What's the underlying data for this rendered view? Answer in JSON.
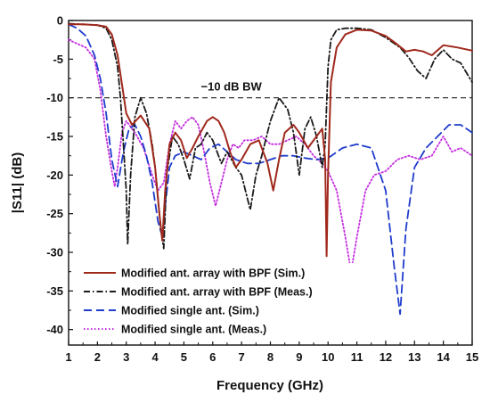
{
  "chart_data": {
    "type": "line",
    "xlabel": "Frequency (GHz)",
    "ylabel": "|S11| (dB)",
    "xlim": [
      1,
      15
    ],
    "ylim": [
      -42,
      0
    ],
    "xticks": [
      1,
      2,
      3,
      4,
      5,
      6,
      7,
      8,
      9,
      10,
      11,
      12,
      13,
      14,
      15
    ],
    "yticks": [
      0,
      -5,
      -10,
      -15,
      -20,
      -25,
      -30,
      -35,
      -40
    ],
    "grid": false,
    "legend_position": "bottom-left",
    "annotation": {
      "text": "−10 dB BW",
      "y": -10,
      "x": 8.0
    },
    "series": [
      {
        "name": "Modified ant. array with BPF (Sim.)",
        "color": "#a0291c",
        "dash": "solid",
        "x": [
          1.0,
          1.5,
          2.0,
          2.3,
          2.5,
          2.7,
          2.9,
          3.0,
          3.2,
          3.5,
          3.8,
          4.0,
          4.15,
          4.25,
          4.35,
          4.5,
          4.7,
          4.9,
          5.1,
          5.3,
          5.5,
          5.8,
          6.0,
          6.2,
          6.4,
          6.6,
          6.8,
          7.0,
          7.3,
          7.6,
          7.9,
          8.1,
          8.3,
          8.5,
          8.8,
          9.0,
          9.3,
          9.6,
          9.8,
          9.9,
          9.95,
          10.0,
          10.1,
          10.3,
          10.6,
          11.0,
          11.5,
          12.0,
          12.3,
          12.7,
          13.0,
          13.3,
          13.6,
          14.0,
          14.5,
          15.0
        ],
        "values": [
          -0.5,
          -0.5,
          -0.6,
          -0.8,
          -1.8,
          -4.5,
          -9.5,
          -12.0,
          -13.5,
          -12.3,
          -14.0,
          -19.0,
          -25.0,
          -28.5,
          -22.0,
          -16.0,
          -14.5,
          -15.5,
          -17.8,
          -16.5,
          -15.0,
          -13.0,
          -12.5,
          -13.0,
          -14.5,
          -17.0,
          -19.0,
          -18.0,
          -16.0,
          -15.5,
          -18.5,
          -22.0,
          -18.0,
          -14.5,
          -13.5,
          -14.5,
          -16.5,
          -15.0,
          -14.0,
          -18.0,
          -30.5,
          -20.0,
          -8.0,
          -3.5,
          -1.8,
          -1.2,
          -1.3,
          -2.0,
          -2.8,
          -4.0,
          -3.8,
          -4.0,
          -4.5,
          -3.2,
          -3.5,
          -3.9
        ]
      },
      {
        "name": "Modified ant. array with BPF (Meas.)",
        "color": "#1a1a1a",
        "dash": "dash-dot",
        "x": [
          1.0,
          1.5,
          2.0,
          2.3,
          2.5,
          2.7,
          2.8,
          2.9,
          3.0,
          3.05,
          3.15,
          3.3,
          3.5,
          3.7,
          3.9,
          4.0,
          4.2,
          4.3,
          4.4,
          4.6,
          4.8,
          5.0,
          5.2,
          5.4,
          5.6,
          5.8,
          6.0,
          6.3,
          6.5,
          6.8,
          7.0,
          7.3,
          7.5,
          7.7,
          8.0,
          8.3,
          8.6,
          8.8,
          9.0,
          9.2,
          9.4,
          9.6,
          9.8,
          9.9,
          10.0,
          10.1,
          10.3,
          10.6,
          11.0,
          11.5,
          12.0,
          12.5,
          12.8,
          13.1,
          13.4,
          13.7,
          14.0,
          14.3,
          14.6,
          15.0
        ],
        "values": [
          -0.4,
          -0.5,
          -0.6,
          -1.0,
          -2.5,
          -6.0,
          -10.0,
          -16.0,
          -22.0,
          -29.0,
          -20.0,
          -12.5,
          -10.0,
          -12.0,
          -16.0,
          -19.0,
          -27.0,
          -29.5,
          -20.0,
          -15.0,
          -16.0,
          -18.0,
          -20.5,
          -16.5,
          -16.0,
          -14.5,
          -15.5,
          -18.5,
          -17.0,
          -19.0,
          -20.0,
          -24.5,
          -20.0,
          -17.5,
          -13.0,
          -10.0,
          -11.5,
          -14.5,
          -20.0,
          -14.0,
          -12.5,
          -15.0,
          -19.0,
          -16.0,
          -6.0,
          -2.5,
          -1.2,
          -1.0,
          -1.0,
          -1.2,
          -2.2,
          -3.5,
          -4.8,
          -6.5,
          -7.5,
          -5.0,
          -3.8,
          -5.0,
          -5.5,
          -8.0
        ]
      },
      {
        "name": "Modified single ant. (Sim.)",
        "color": "#1f3ccc",
        "dash": "dashed",
        "x": [
          1.0,
          1.3,
          1.6,
          1.9,
          2.1,
          2.3,
          2.5,
          2.7,
          2.9,
          3.1,
          3.3,
          3.5,
          3.7,
          3.9,
          4.1,
          4.25,
          4.35,
          4.5,
          4.7,
          5.0,
          5.3,
          5.6,
          5.9,
          6.2,
          6.5,
          6.8,
          7.2,
          7.6,
          8.0,
          8.4,
          8.8,
          9.2,
          9.6,
          10.0,
          10.5,
          11.0,
          11.5,
          12.0,
          12.3,
          12.5,
          12.7,
          13.0,
          13.4,
          13.8,
          14.2,
          14.6,
          15.0
        ],
        "values": [
          -0.5,
          -1.0,
          -2.0,
          -4.5,
          -7.5,
          -12.0,
          -18.0,
          -21.5,
          -17.0,
          -14.0,
          -13.5,
          -15.0,
          -17.5,
          -21.0,
          -26.0,
          -28.0,
          -24.0,
          -19.0,
          -17.5,
          -17.0,
          -17.5,
          -18.0,
          -16.5,
          -16.0,
          -17.0,
          -18.0,
          -18.5,
          -18.5,
          -18.0,
          -17.5,
          -17.5,
          -17.8,
          -18.0,
          -17.8,
          -16.5,
          -16.0,
          -16.5,
          -22.0,
          -32.0,
          -38.0,
          -27.0,
          -19.0,
          -16.5,
          -15.0,
          -13.5,
          -13.5,
          -14.5
        ]
      },
      {
        "name": "Modified single ant. (Meas.)",
        "color": "#c52ee0",
        "dash": "dotted",
        "x": [
          1.0,
          1.3,
          1.6,
          1.9,
          2.1,
          2.3,
          2.5,
          2.6,
          2.7,
          2.85,
          3.0,
          3.3,
          3.6,
          3.9,
          4.1,
          4.3,
          4.5,
          4.7,
          4.9,
          5.1,
          5.3,
          5.5,
          5.7,
          5.9,
          6.1,
          6.3,
          6.5,
          6.7,
          6.9,
          7.1,
          7.4,
          7.7,
          8.0,
          8.3,
          8.6,
          8.9,
          9.2,
          9.5,
          9.8,
          10.0,
          10.3,
          10.6,
          10.8,
          11.0,
          11.3,
          11.6,
          12.0,
          12.4,
          12.8,
          13.2,
          13.6,
          14.0,
          14.3,
          14.6,
          15.0
        ],
        "values": [
          -2.5,
          -3.0,
          -3.5,
          -5.0,
          -9.0,
          -15.0,
          -19.5,
          -21.5,
          -19.0,
          -14.5,
          -13.0,
          -14.5,
          -16.5,
          -20.0,
          -22.0,
          -21.0,
          -16.0,
          -13.0,
          -14.0,
          -13.0,
          -12.5,
          -13.5,
          -17.0,
          -21.0,
          -24.0,
          -21.0,
          -18.0,
          -16.0,
          -16.5,
          -15.5,
          -15.5,
          -15.0,
          -16.0,
          -16.0,
          -15.5,
          -15.0,
          -16.0,
          -17.5,
          -18.5,
          -19.5,
          -22.0,
          -28.0,
          -32.5,
          -28.0,
          -22.0,
          -20.0,
          -19.5,
          -18.0,
          -17.5,
          -18.0,
          -17.5,
          -15.0,
          -17.0,
          -16.5,
          -17.5
        ]
      }
    ]
  }
}
